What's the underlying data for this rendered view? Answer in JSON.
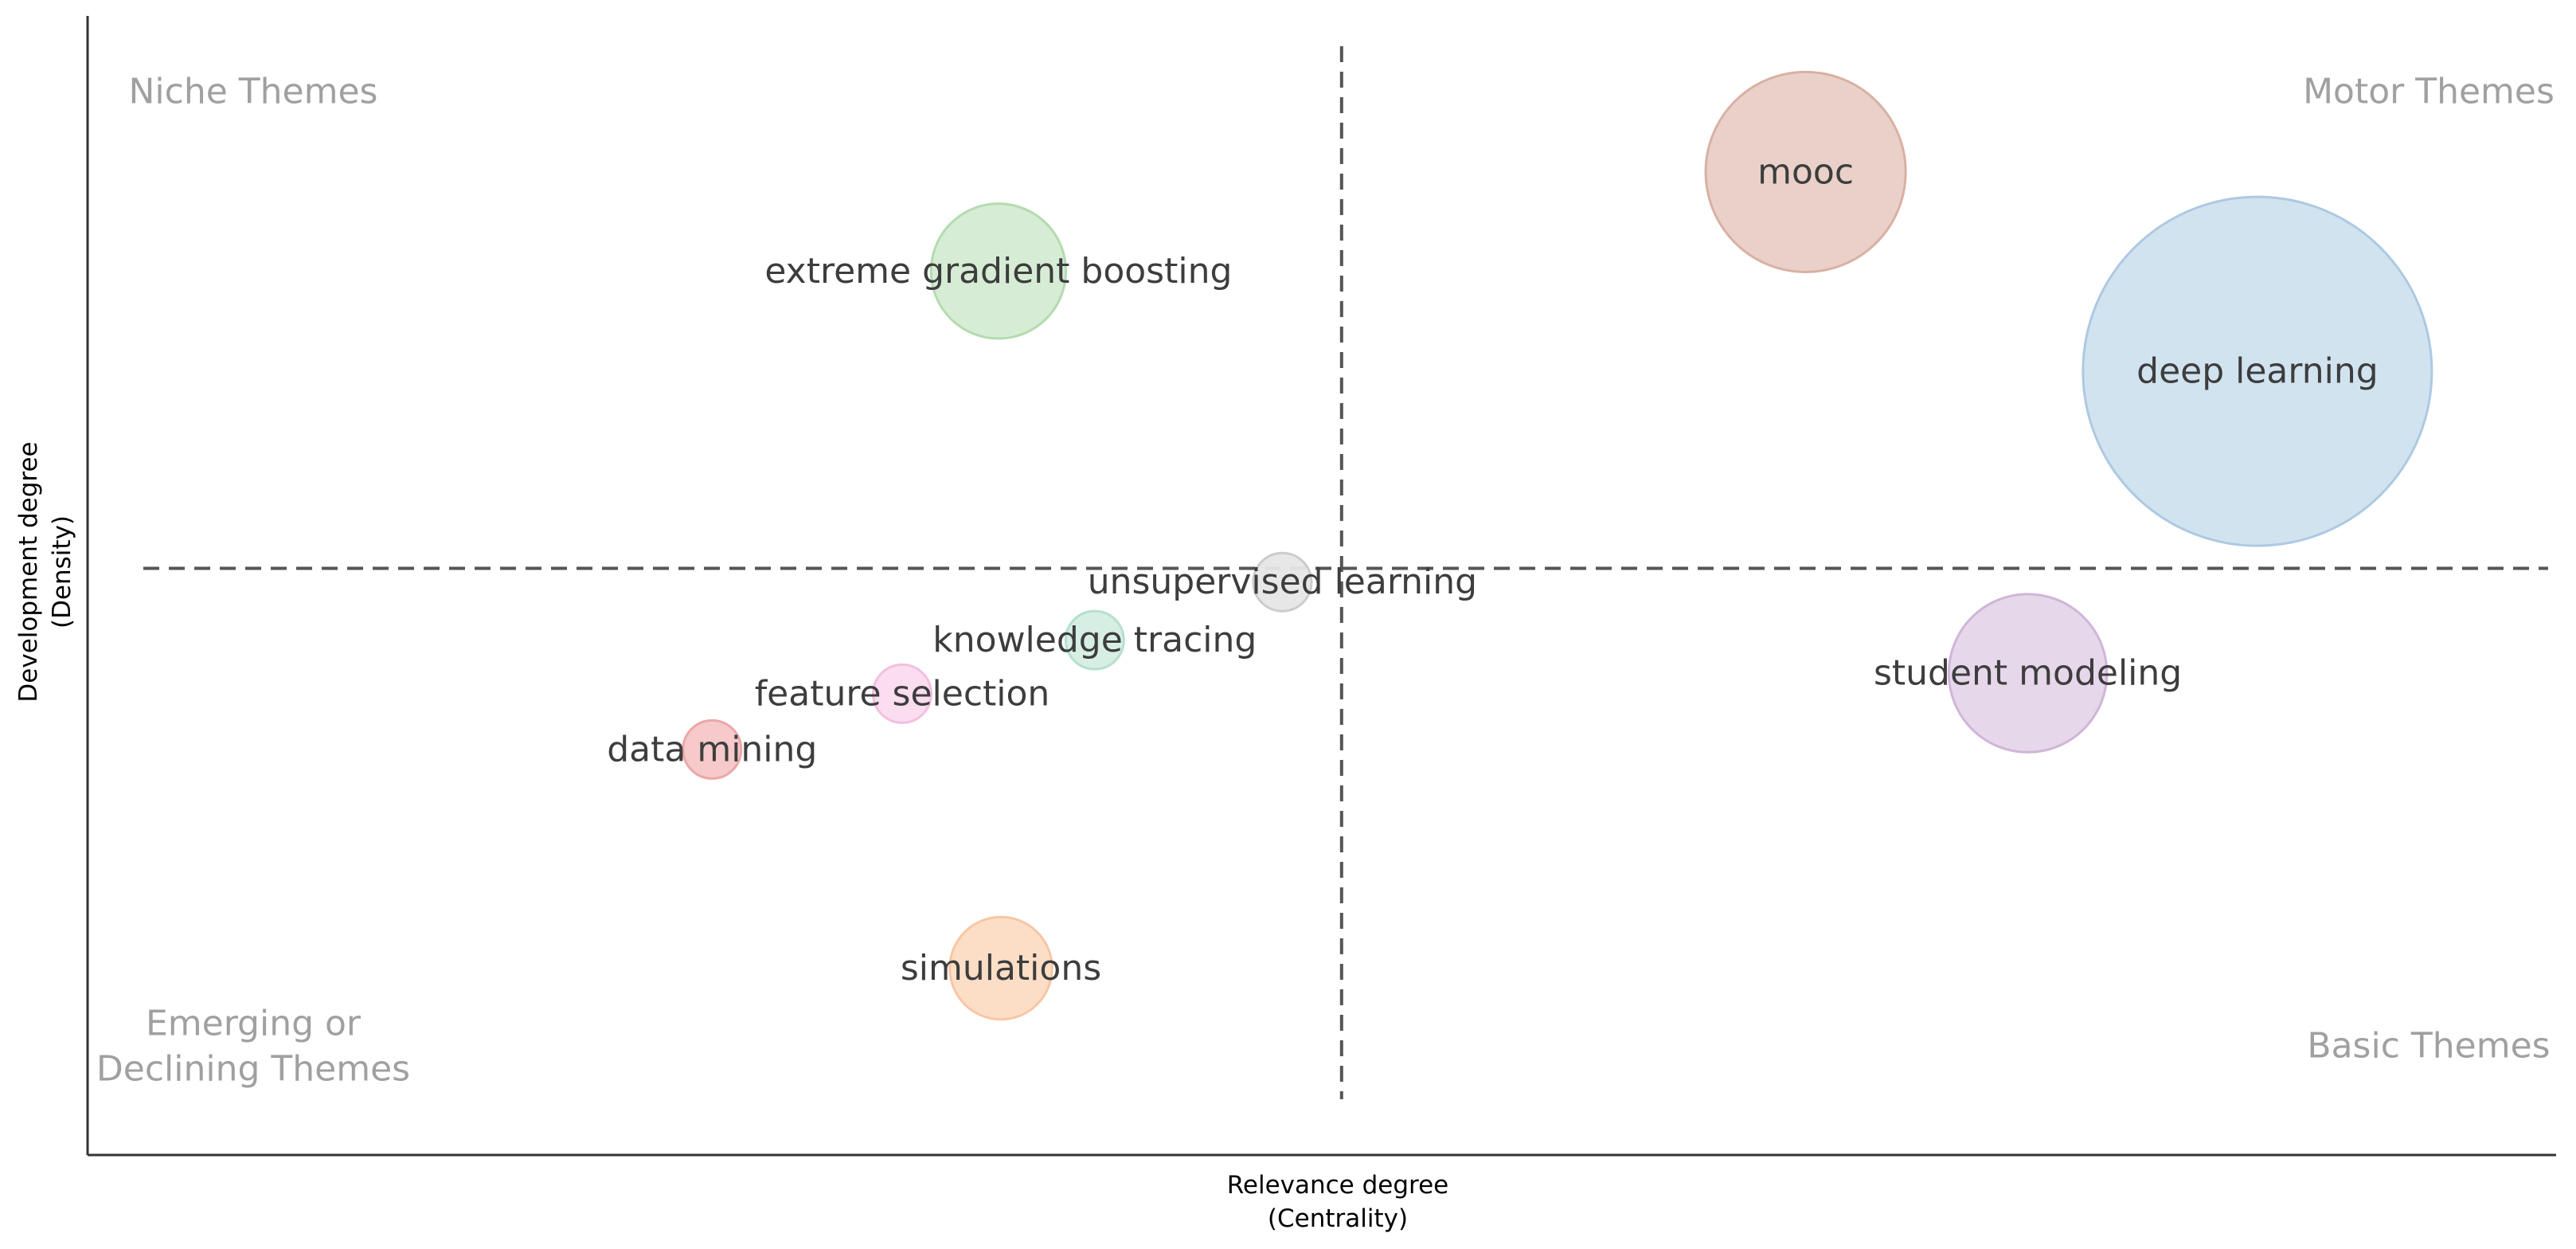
{
  "chart_data": {
    "type": "scatter",
    "xlabel": [
      "Relevance degree",
      "(Centrality)"
    ],
    "ylabel": [
      "Development degree",
      "(Density)"
    ],
    "xlim": [
      0,
      100
    ],
    "ylim": [
      0,
      100
    ],
    "x_threshold": 50.8,
    "y_threshold": 51.5,
    "grid": false,
    "quadrant_labels": [
      {
        "id": "niche",
        "lines": [
          "Niche Themes"
        ],
        "corner": "top-left"
      },
      {
        "id": "motor",
        "lines": [
          "Motor Themes"
        ],
        "corner": "top-right"
      },
      {
        "id": "emerging",
        "lines": [
          "Emerging or",
          "Declining Themes"
        ],
        "corner": "bottom-left"
      },
      {
        "id": "basic",
        "lines": [
          "Basic Themes"
        ],
        "corner": "bottom-right"
      }
    ],
    "points": [
      {
        "label": "mooc",
        "x": 69.6,
        "y": 86.3,
        "size": 17.2,
        "color": "#e8cfc6",
        "stroke": "#d9b0a3"
      },
      {
        "label": "deep learning",
        "x": 87.9,
        "y": 68.8,
        "size": 30.0,
        "color": "#d0e1ef",
        "stroke": "#adc9e2"
      },
      {
        "label": "extreme gradient boosting",
        "x": 36.9,
        "y": 77.6,
        "size": 11.6,
        "color": "#d5ebd3",
        "stroke": "#b4dbb0"
      },
      {
        "label": "unsupervised learning",
        "x": 48.4,
        "y": 50.3,
        "size": 5.0,
        "color": "#e6e6e6",
        "stroke": "#cccccc"
      },
      {
        "label": "student modeling",
        "x": 78.6,
        "y": 42.3,
        "size": 13.6,
        "color": "#e6d5ea",
        "stroke": "#d0b5d9"
      },
      {
        "label": "knowledge tracing",
        "x": 40.8,
        "y": 45.2,
        "size": 5.0,
        "color": "#d5ede4",
        "stroke": "#b6dfcf"
      },
      {
        "label": "feature selection",
        "x": 33.0,
        "y": 40.5,
        "size": 5.0,
        "color": "#fbdbef",
        "stroke": "#f2bfe0"
      },
      {
        "label": "data mining",
        "x": 25.3,
        "y": 35.6,
        "size": 5.0,
        "color": "#f5c6c7",
        "stroke": "#eba7a9"
      },
      {
        "label": "simulations",
        "x": 37.0,
        "y": 16.4,
        "size": 8.8,
        "color": "#fcdcc4",
        "stroke": "#f7c6a4"
      }
    ]
  }
}
